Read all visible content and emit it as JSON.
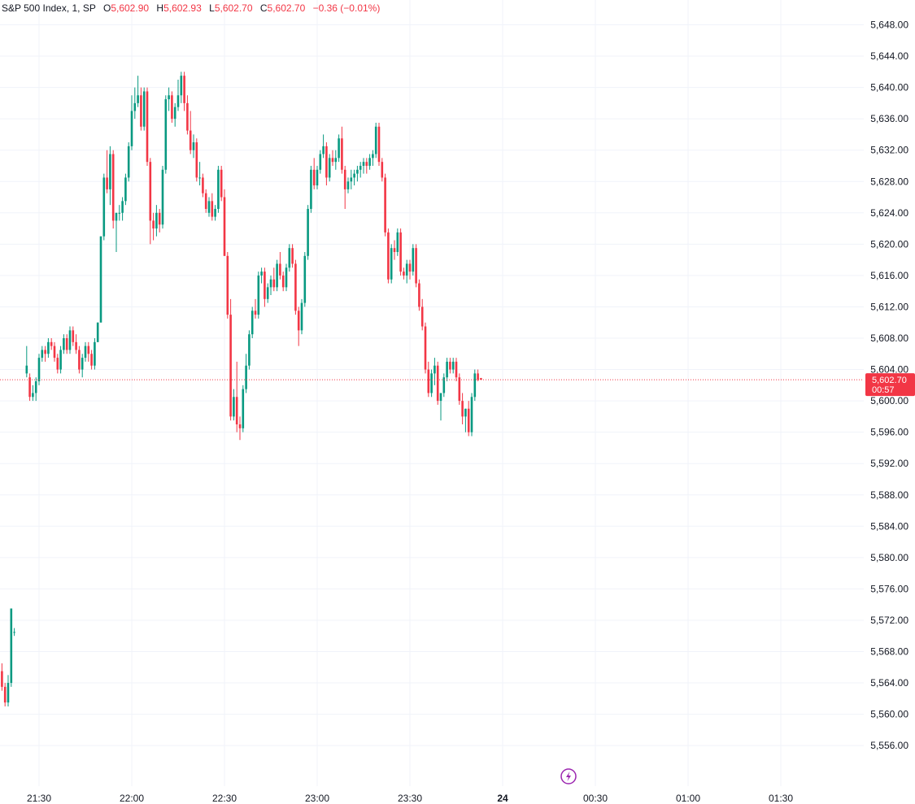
{
  "legend": {
    "symbol": "S&P 500 Index, 1, SP",
    "open_label": "O",
    "open": "5,602.90",
    "high_label": "H",
    "high": "5,602.93",
    "low_label": "L",
    "low": "5,602.70",
    "close_label": "C",
    "close": "5,602.70",
    "change": "−0.36 (−0.01%)"
  },
  "last_price": {
    "price": "5,602.70",
    "countdown": "00:57",
    "value": 5602.7
  },
  "colors": {
    "up": "#089981",
    "down": "#f23645",
    "grid": "#f0f3fa",
    "tag": "#f23645",
    "logo": "#9c27b0"
  },
  "icons": {
    "logo": "lightning-bolt-icon"
  },
  "chart_data": {
    "type": "candlestick",
    "ylim": [
      5553,
      5650
    ],
    "xlim": [
      -15,
      320
    ],
    "y_ticks": [
      5648,
      5644,
      5640,
      5636,
      5632,
      5628,
      5624,
      5620,
      5616,
      5612,
      5608,
      5604,
      5600,
      5596,
      5592,
      5588,
      5584,
      5580,
      5576,
      5572,
      5568,
      5564,
      5560,
      5556
    ],
    "y_tick_labels": [
      "5,648.00",
      "5,644.00",
      "5,640.00",
      "5,636.00",
      "5,632.00",
      "5,628.00",
      "5,624.00",
      "5,620.00",
      "5,616.00",
      "5,612.00",
      "5,608.00",
      "5,604.00",
      "5,600.00",
      "5,596.00",
      "5,592.00",
      "5,588.00",
      "5,584.00",
      "5,580.00",
      "5,576.00",
      "5,572.00",
      "5,568.00",
      "5,564.00",
      "5,560.00",
      "5,556.00"
    ],
    "x_ticks": [
      {
        "m": 0,
        "label": "21:30",
        "bold": false
      },
      {
        "m": 30,
        "label": "22:00",
        "bold": false
      },
      {
        "m": 60,
        "label": "22:30",
        "bold": false
      },
      {
        "m": 90,
        "label": "23:00",
        "bold": false
      },
      {
        "m": 120,
        "label": "23:30",
        "bold": false
      },
      {
        "m": 150,
        "label": "24",
        "bold": true
      },
      {
        "m": 180,
        "label": "00:30",
        "bold": false
      },
      {
        "m": 210,
        "label": "01:00",
        "bold": false
      },
      {
        "m": 240,
        "label": "01:30",
        "bold": false
      }
    ],
    "segments": [
      {
        "start_minute": -16,
        "candles": [
          [
            5569.5,
            5570.5,
            5566,
            5566.5
          ],
          [
            5566.5,
            5569,
            5565,
            5568
          ],
          [
            5568,
            5568.5,
            5561.5,
            5562
          ],
          [
            5562,
            5566,
            5561.5,
            5565.5
          ],
          [
            5565.5,
            5566.5,
            5563,
            5563.5
          ],
          [
            5563.5,
            5564,
            5561,
            5561.5
          ],
          [
            5561.5,
            5565,
            5561,
            5564
          ],
          [
            5564,
            5573.5,
            5563.5,
            5573.5
          ],
          [
            5570.5,
            5571,
            5570,
            5570.5
          ]
        ]
      },
      {
        "start_minute": -4,
        "candles": [
          [
            5603.5,
            5607,
            5603,
            5604.5
          ],
          [
            5603,
            5603.5,
            5600,
            5600.5
          ],
          [
            5600.5,
            5602,
            5600,
            5601
          ],
          [
            5601,
            5603,
            5600,
            5602.5
          ],
          [
            5602.5,
            5606,
            5602,
            5605.5
          ],
          [
            5605.5,
            5607,
            5605,
            5606.5
          ],
          [
            5606.5,
            5607,
            5605,
            5606
          ],
          [
            5606,
            5608,
            5605.5,
            5607.5
          ],
          [
            5607.5,
            5608,
            5606.5,
            5607
          ],
          [
            5607,
            5607.5,
            5605,
            5605.5
          ],
          [
            5605.5,
            5606,
            5603.5,
            5604
          ],
          [
            5604,
            5607,
            5603.5,
            5606.5
          ],
          [
            5606.5,
            5608.5,
            5606,
            5608
          ],
          [
            5608,
            5608.5,
            5606,
            5606.5
          ],
          [
            5606.5,
            5609.5,
            5606,
            5609
          ],
          [
            5609,
            5609.5,
            5607,
            5607.5
          ],
          [
            5607.5,
            5608.5,
            5606,
            5606.5
          ],
          [
            5606.5,
            5607,
            5603.5,
            5604
          ],
          [
            5604,
            5606,
            5603,
            5605.5
          ],
          [
            5605.5,
            5607.5,
            5605,
            5607
          ],
          [
            5607,
            5607.5,
            5605,
            5606
          ],
          [
            5606,
            5606.5,
            5604,
            5604.5
          ],
          [
            5604.5,
            5608,
            5604,
            5607.5
          ],
          [
            5607.5,
            5610,
            5607.5,
            5610
          ],
          [
            5610,
            5621,
            5610,
            5621
          ],
          [
            5621,
            5629,
            5620.5,
            5628.5
          ],
          [
            5628.5,
            5632,
            5626.5,
            5627
          ],
          [
            5627,
            5632.5,
            5625,
            5631.5
          ],
          [
            5631.5,
            5632,
            5622,
            5623
          ],
          [
            5623,
            5624,
            5619,
            5624
          ],
          [
            5624,
            5625,
            5623,
            5624
          ],
          [
            5624,
            5626,
            5623,
            5625.5
          ],
          [
            5625.5,
            5629,
            5625,
            5628.5
          ],
          [
            5628.5,
            5633,
            5628,
            5632.5
          ],
          [
            5632.5,
            5639,
            5632,
            5637
          ],
          [
            5637,
            5640,
            5636,
            5638
          ],
          [
            5638,
            5641.5,
            5637.5,
            5639
          ],
          [
            5639,
            5640,
            5634.5,
            5635
          ],
          [
            5635,
            5640,
            5634.5,
            5639.5
          ],
          [
            5639.5,
            5640,
            5630,
            5630.5
          ],
          [
            5630.5,
            5631,
            5620,
            5623
          ],
          [
            5623,
            5624,
            5620.5,
            5622
          ],
          [
            5622,
            5625,
            5621,
            5624
          ],
          [
            5624,
            5624.5,
            5621.5,
            5622.5
          ],
          [
            5622.5,
            5630,
            5622,
            5629.5
          ],
          [
            5629.5,
            5639,
            5629,
            5638.5
          ],
          [
            5638.5,
            5640,
            5637,
            5639
          ],
          [
            5639,
            5639.5,
            5635.5,
            5636
          ],
          [
            5636,
            5638,
            5635,
            5637.5
          ],
          [
            5637.5,
            5641,
            5637,
            5639
          ],
          [
            5639,
            5642,
            5638,
            5641.5
          ],
          [
            5641.5,
            5642,
            5637,
            5638
          ],
          [
            5638,
            5639,
            5634,
            5634.5
          ],
          [
            5634.5,
            5637,
            5631.5,
            5632
          ],
          [
            5632,
            5634,
            5631,
            5633
          ],
          [
            5633,
            5633.5,
            5628,
            5628.5
          ],
          [
            5628.5,
            5630.5,
            5627.5,
            5628.5
          ],
          [
            5628.5,
            5629,
            5626,
            5626.5
          ],
          [
            5626.5,
            5627,
            5624,
            5624.5
          ],
          [
            5624,
            5626,
            5623.5,
            5625.5
          ],
          [
            5625.5,
            5626.5,
            5623,
            5623.5
          ],
          [
            5623.5,
            5625,
            5623,
            5624.5
          ],
          [
            5624.5,
            5630,
            5624,
            5629.5
          ],
          [
            5629.5,
            5630,
            5625.5,
            5626
          ],
          [
            5626,
            5627,
            5618.5,
            5618.5
          ],
          [
            5618.5,
            5619,
            5610.5,
            5611
          ],
          [
            5611,
            5613,
            5597.5,
            5598
          ],
          [
            5598,
            5601.5,
            5597.5,
            5600.5
          ],
          [
            5600.5,
            5605,
            5596,
            5597
          ],
          [
            5597,
            5598,
            5595,
            5596.5
          ],
          [
            5596.5,
            5602,
            5596,
            5601.5
          ],
          [
            5601.5,
            5606,
            5601,
            5604.5
          ],
          [
            5604.5,
            5609,
            5604,
            5608.5
          ],
          [
            5608.5,
            5612,
            5608,
            5611.5
          ],
          [
            5611.5,
            5613,
            5610.5,
            5611
          ],
          [
            5611,
            5616.5,
            5610.5,
            5616
          ],
          [
            5616,
            5617,
            5615,
            5616.5
          ],
          [
            5616.5,
            5617,
            5612,
            5613
          ],
          [
            5613,
            5615,
            5612.5,
            5614.5
          ],
          [
            5614.5,
            5616,
            5613.5,
            5615.5
          ],
          [
            5615.5,
            5617,
            5614,
            5614.5
          ],
          [
            5614.5,
            5618,
            5614,
            5617.5
          ],
          [
            5617.5,
            5619,
            5615.5,
            5616
          ],
          [
            5616,
            5616.5,
            5614,
            5614.5
          ],
          [
            5614.5,
            5617.5,
            5614,
            5617
          ],
          [
            5617,
            5620,
            5616.5,
            5619.5
          ],
          [
            5619.5,
            5620,
            5617,
            5617.5
          ],
          [
            5617.5,
            5618,
            5611,
            5611.5
          ],
          [
            5611.5,
            5612,
            5607,
            5609
          ],
          [
            5609,
            5613,
            5608.5,
            5612.5
          ],
          [
            5612.5,
            5619,
            5612,
            5618.5
          ],
          [
            5618.5,
            5625,
            5618,
            5624.5
          ],
          [
            5624.5,
            5630,
            5624,
            5629.5
          ],
          [
            5629.5,
            5631,
            5627,
            5627.5
          ],
          [
            5627.5,
            5630,
            5627,
            5629.5
          ],
          [
            5629.5,
            5632,
            5629,
            5631.5
          ],
          [
            5631.5,
            5634,
            5631,
            5632.5
          ],
          [
            5632.5,
            5633,
            5627.5,
            5628.5
          ],
          [
            5628.5,
            5631.5,
            5628,
            5631
          ],
          [
            5631,
            5632,
            5630,
            5630.5
          ],
          [
            5630.5,
            5632,
            5629.5,
            5631
          ],
          [
            5631,
            5634,
            5630.5,
            5633.5
          ],
          [
            5633.5,
            5635,
            5629,
            5629.5
          ],
          [
            5629.5,
            5630,
            5624.5,
            5627
          ],
          [
            5627,
            5628.5,
            5626.5,
            5628
          ],
          [
            5628,
            5629.5,
            5627,
            5628.5
          ],
          [
            5628.5,
            5629.5,
            5627.5,
            5629
          ],
          [
            5629,
            5630,
            5628,
            5629.5
          ],
          [
            5629.5,
            5630.5,
            5628.5,
            5630
          ],
          [
            5630,
            5631,
            5629,
            5630.5
          ],
          [
            5630.5,
            5631,
            5629,
            5630
          ],
          [
            5630,
            5631.5,
            5629.5,
            5631
          ],
          [
            5631,
            5632,
            5630,
            5631.5
          ],
          [
            5631.5,
            5635.5,
            5631,
            5635
          ],
          [
            5635,
            5635.5,
            5630,
            5630.5
          ],
          [
            5630.5,
            5631,
            5628,
            5628.5
          ],
          [
            5628.5,
            5629,
            5621,
            5621.5
          ],
          [
            5621.5,
            5622,
            5615,
            5615.5
          ],
          [
            5615.5,
            5620,
            5615,
            5619.5
          ],
          [
            5619.5,
            5620.5,
            5618,
            5619
          ],
          [
            5619,
            5622,
            5618.5,
            5621.5
          ],
          [
            5621.5,
            5622,
            5616,
            5616.5
          ],
          [
            5616.5,
            5617,
            5615.5,
            5616
          ],
          [
            5616,
            5618,
            5615,
            5617.5
          ],
          [
            5617.5,
            5618,
            5615.5,
            5616.5
          ],
          [
            5616.5,
            5620,
            5616,
            5619.5
          ],
          [
            5619.5,
            5620,
            5614.5,
            5615
          ],
          [
            5615,
            5615.5,
            5611.5,
            5612
          ],
          [
            5612,
            5613,
            5609,
            5609.5
          ],
          [
            5609.5,
            5610,
            5603.5,
            5604
          ],
          [
            5604,
            5605,
            5600.5,
            5601
          ],
          [
            5601,
            5604,
            5600.5,
            5603.5
          ],
          [
            5603.5,
            5605.5,
            5602,
            5604.5
          ],
          [
            5604.5,
            5605,
            5599.5,
            5600
          ],
          [
            5600,
            5601,
            5597.5,
            5601
          ],
          [
            5601,
            5603.5,
            5600.5,
            5603
          ],
          [
            5603,
            5605.5,
            5602.5,
            5605
          ],
          [
            5605,
            5605.5,
            5603.5,
            5604
          ],
          [
            5604,
            5605.5,
            5603.5,
            5605
          ],
          [
            5605,
            5605.5,
            5602.5,
            5603
          ],
          [
            5603,
            5603.5,
            5599.5,
            5600
          ],
          [
            5600,
            5601,
            5597,
            5598
          ],
          [
            5598,
            5599,
            5596,
            5599
          ],
          [
            5599,
            5600,
            5595.5,
            5596
          ],
          [
            5596,
            5601,
            5595.5,
            5600.5
          ],
          [
            5600.5,
            5604,
            5600,
            5603.5
          ],
          [
            5603.5,
            5604,
            5602.5,
            5602.7
          ],
          [
            5602.9,
            5602.93,
            5602.7,
            5602.7
          ]
        ]
      }
    ]
  }
}
